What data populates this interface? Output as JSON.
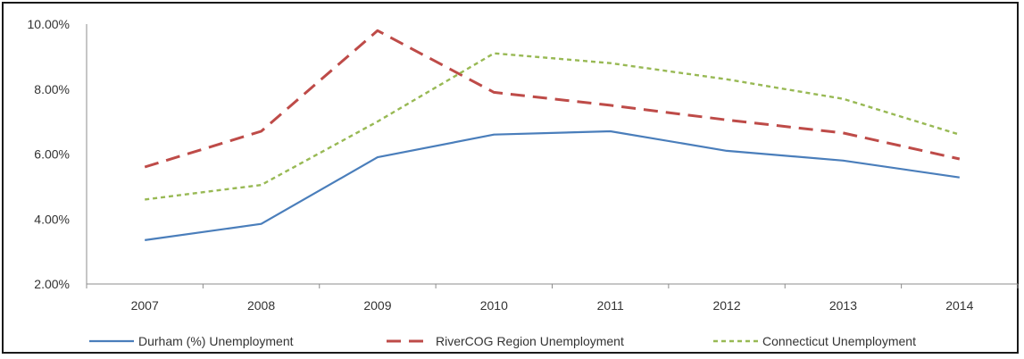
{
  "chart_data": {
    "type": "line",
    "title": "",
    "xlabel": "",
    "ylabel": "",
    "categories": [
      "2007",
      "2008",
      "2009",
      "2010",
      "2011",
      "2012",
      "2013",
      "2014"
    ],
    "ylim": [
      0.02,
      0.1
    ],
    "yticks": [
      0.1,
      0.08,
      0.06,
      0.04,
      0.02
    ],
    "ytick_labels": [
      "10.00%",
      "8.00%",
      "6.00%",
      "4.00%",
      "2.00%"
    ],
    "grid": false,
    "legend_position": "bottom",
    "series": [
      {
        "name": "Durham (%) Unemployment",
        "color": "#4a7ebb",
        "style": "solid",
        "values": [
          0.0335,
          0.0385,
          0.059,
          0.066,
          0.067,
          0.061,
          0.058,
          0.0528
        ]
      },
      {
        "name": "RiverCOG Region Unemployment",
        "color": "#be4b48",
        "style": "long-dash",
        "values": [
          0.056,
          0.067,
          0.098,
          0.079,
          0.075,
          0.0705,
          0.0665,
          0.0585
        ]
      },
      {
        "name": "Connecticut Unemployment",
        "color": "#98b954",
        "style": "short-dash",
        "values": [
          0.046,
          0.0505,
          0.07,
          0.091,
          0.088,
          0.083,
          0.077,
          0.066
        ]
      }
    ]
  }
}
